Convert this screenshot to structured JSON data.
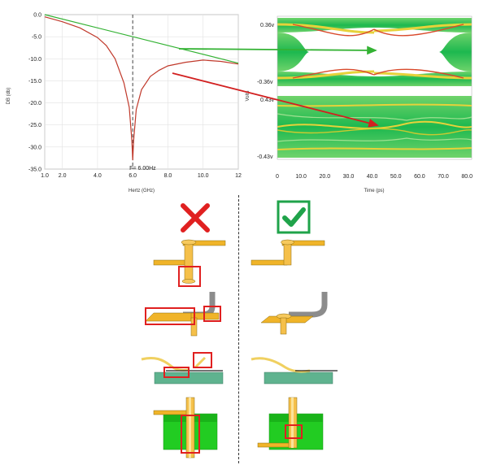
{
  "insertion_loss_chart": {
    "y_label": "DB (db)",
    "x_label": "Hertz (GHz)",
    "y_ticks": [
      "0.0",
      "-5.0",
      "-10.0",
      "-15.0",
      "-20.0",
      "-25.0",
      "-30.0",
      "-35.0"
    ],
    "x_ticks": [
      "1.0",
      "2.0",
      "4.0",
      "6.0",
      "8.0",
      "10.0",
      "12"
    ],
    "marker_label": "F= 6.00Hz",
    "colors": {
      "curve": "#c0392b",
      "fit": "#33b233",
      "marker": "#444444"
    }
  },
  "eye_diagram": {
    "y_label": "Volts",
    "x_label": "Time (ps)",
    "upper_eye_levels": [
      "0.36v",
      "-0.36v"
    ],
    "lower_eye_levels": [
      "0.43v",
      "-0.43v"
    ],
    "x_ticks": [
      "0",
      "10.0",
      "20.0",
      "30.0",
      "40.0",
      "50.0",
      "60.0",
      "70.0",
      "80.0"
    ]
  },
  "arrows": {
    "top_color": "#33b233",
    "bottom_color": "#d22020"
  },
  "verdict": {
    "bad_icon": "x-mark-icon",
    "good_icon": "check-mark-icon",
    "bad_color": "#e02020",
    "good_color": "#1fa34a"
  },
  "rows": [
    "via-stub",
    "trace-bend",
    "connector-pin",
    "press-fit-via"
  ],
  "chart_data": [
    {
      "type": "line",
      "title": "",
      "xlabel": "Hertz (GHz)",
      "ylabel": "DB (db)",
      "xlim": [
        1,
        12
      ],
      "ylim": [
        -35,
        0
      ],
      "grid": true,
      "series": [
        {
          "x": [
            1,
            2,
            3,
            4,
            4.5,
            5,
            5.5,
            5.8,
            5.95,
            6,
            6.05,
            6.2,
            6.5,
            7,
            7.5,
            8,
            9,
            10,
            11,
            12
          ],
          "y": [
            -0.5,
            -1.6,
            -3.0,
            -5.2,
            -7.0,
            -10.0,
            -15.5,
            -21.0,
            -28.5,
            -33.0,
            -28.5,
            -21.5,
            -17.0,
            -14.0,
            -12.6,
            -11.6,
            -10.8,
            -10.3,
            -10.6,
            -11.2
          ]
        },
        {
          "x": [
            1,
            12
          ],
          "y": [
            0,
            -11
          ]
        }
      ],
      "annotations": [
        {
          "x": 6,
          "text": "F= 6.00Hz"
        }
      ]
    }
  ]
}
